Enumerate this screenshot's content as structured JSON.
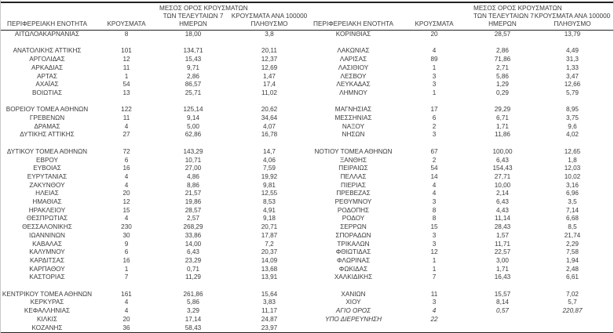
{
  "table": {
    "headers": {
      "region": "ΠΕΡΙΦΕΡΕΙΑΚΗ ΕΝΟΤΗΤΑ",
      "cases": "ΚΡΟΥΣΜΑΤΑ",
      "avg7_l1": "ΜΕΣΟΣ ΟΡΟΣ ΚΡΟΥΣΜΑΤΩΝ",
      "avg7_l2": "ΤΩΝ ΤΕΛΕΥΤΑΙΩΝ 7",
      "avg7_l3": "ΗΜΕΡΩΝ",
      "per100k_l1": "ΚΡΟΥΣΜΑΤΑ ΑΝΑ 100000",
      "per100k_l2": "ΠΛΗΘΥΣΜΟ"
    },
    "text_color": "#3b3b3b",
    "rule_color": "#222222",
    "left_rows": [
      {
        "region": "ΑΙΤΩΛΟΑΚΑΡΝΑΝΙΑΣ",
        "cases": "8",
        "avg7": "18,00",
        "per100k": "3,8"
      },
      {
        "blank": true
      },
      {
        "region": "ΑΝΑΤΟΛΙΚΗΣ ΑΤΤΙΚΗΣ",
        "cases": "101",
        "avg7": "134,71",
        "per100k": "20,11"
      },
      {
        "region": "ΑΡΓΟΛΙΔΑΣ",
        "cases": "12",
        "avg7": "15,43",
        "per100k": "12,37"
      },
      {
        "region": "ΑΡΚΑΔΙΑΣ",
        "cases": "11",
        "avg7": "9,71",
        "per100k": "12,69"
      },
      {
        "region": "ΑΡΤΑΣ",
        "cases": "1",
        "avg7": "2,86",
        "per100k": "1,47"
      },
      {
        "region": "ΑΧΑΪΑΣ",
        "cases": "54",
        "avg7": "86,57",
        "per100k": "17,4"
      },
      {
        "region": "ΒΟΙΩΤΙΑΣ",
        "cases": "13",
        "avg7": "25,71",
        "per100k": "11,02"
      },
      {
        "blank": true
      },
      {
        "region": "ΒΟΡΕΙΟΥ ΤΟΜΕΑ ΑΘΗΝΩΝ",
        "cases": "122",
        "avg7": "125,14",
        "per100k": "20,62"
      },
      {
        "region": "ΓΡΕΒΕΝΩΝ",
        "cases": "11",
        "avg7": "9,14",
        "per100k": "34,64"
      },
      {
        "region": "ΔΡΑΜΑΣ",
        "cases": "4",
        "avg7": "5,00",
        "per100k": "4,07"
      },
      {
        "region": "ΔΥΤΙΚΗΣ ΑΤΤΙΚΗΣ",
        "cases": "27",
        "avg7": "62,86",
        "per100k": "16,78"
      },
      {
        "blank": true
      },
      {
        "region": "ΔΥΤΙΚΟΥ ΤΟΜΕΑ ΑΘΗΝΩΝ",
        "cases": "72",
        "avg7": "143,29",
        "per100k": "14,7"
      },
      {
        "region": "ΕΒΡΟΥ",
        "cases": "6",
        "avg7": "10,71",
        "per100k": "4,06"
      },
      {
        "region": "ΕΥΒΟΙΑΣ",
        "cases": "16",
        "avg7": "27,00",
        "per100k": "7,59"
      },
      {
        "region": "ΕΥΡΥΤΑΝΙΑΣ",
        "cases": "4",
        "avg7": "4,86",
        "per100k": "19,92"
      },
      {
        "region": "ΖΑΚΥΝΘΟΥ",
        "cases": "4",
        "avg7": "8,86",
        "per100k": "9,81"
      },
      {
        "region": "ΗΛΕΙΑΣ",
        "cases": "20",
        "avg7": "21,57",
        "per100k": "12,55"
      },
      {
        "region": "ΗΜΑΘΙΑΣ",
        "cases": "12",
        "avg7": "19,86",
        "per100k": "8,53"
      },
      {
        "region": "ΗΡΑΚΛΕΙΟΥ",
        "cases": "15",
        "avg7": "28,57",
        "per100k": "4,91"
      },
      {
        "region": "ΘΕΣΠΡΩΤΙΑΣ",
        "cases": "4",
        "avg7": "2,57",
        "per100k": "9,18"
      },
      {
        "region": "ΘΕΣΣΑΛΟΝΙΚΗΣ",
        "cases": "230",
        "avg7": "268,29",
        "per100k": "20,71"
      },
      {
        "region": "ΙΩΑΝΝΙΝΩΝ",
        "cases": "30",
        "avg7": "33,86",
        "per100k": "17,87"
      },
      {
        "region": "ΚΑΒΑΛΑΣ",
        "cases": "9",
        "avg7": "14,00",
        "per100k": "7,2"
      },
      {
        "region": "ΚΑΛΥΜΝΟΥ",
        "cases": "6",
        "avg7": "6,43",
        "per100k": "20,37"
      },
      {
        "region": "ΚΑΡΔΙΤΣΑΣ",
        "cases": "16",
        "avg7": "23,29",
        "per100k": "14,09"
      },
      {
        "region": "ΚΑΡΠΑΘΟΥ",
        "cases": "1",
        "avg7": "0,71",
        "per100k": "13,68"
      },
      {
        "region": "ΚΑΣΤΟΡΙΑΣ",
        "cases": "7",
        "avg7": "11,29",
        "per100k": "13,91"
      },
      {
        "blank": true
      },
      {
        "region": "ΚΕΝΤΡΙΚΟΥ ΤΟΜΕΑ ΑΘΗΝΩΝ",
        "cases": "161",
        "avg7": "261,86",
        "per100k": "15,64"
      },
      {
        "region": "ΚΕΡΚΥΡΑΣ",
        "cases": "4",
        "avg7": "5,86",
        "per100k": "3,83"
      },
      {
        "region": "ΚΕΦΑΛΛΗΝΙΑΣ",
        "cases": "4",
        "avg7": "3,29",
        "per100k": "11,17"
      },
      {
        "region": "ΚΙΛΚΙΣ",
        "cases": "20",
        "avg7": "17,14",
        "per100k": "24,87"
      },
      {
        "region": "ΚΟΖΑΝΗΣ",
        "cases": "36",
        "avg7": "58,43",
        "per100k": "23,97"
      }
    ],
    "right_rows": [
      {
        "region": "ΚΟΡΙΝΘΙΑΣ",
        "cases": "20",
        "avg7": "28,57",
        "per100k": "13,79"
      },
      {
        "blank": true
      },
      {
        "region": "ΛΑΚΩΝΙΑΣ",
        "cases": "4",
        "avg7": "2,86",
        "per100k": "4,49"
      },
      {
        "region": "ΛΑΡΙΣΑΣ",
        "cases": "89",
        "avg7": "71,86",
        "per100k": "31,3"
      },
      {
        "region": "ΛΑΣΙΘΙΟΥ",
        "cases": "1",
        "avg7": "2,71",
        "per100k": "1,33"
      },
      {
        "region": "ΛΕΣΒΟΥ",
        "cases": "3",
        "avg7": "5,86",
        "per100k": "3,47"
      },
      {
        "region": "ΛΕΥΚΑΔΑΣ",
        "cases": "3",
        "avg7": "1,29",
        "per100k": "12,66"
      },
      {
        "region": "ΛΗΜΝΟΥ",
        "cases": "1",
        "avg7": "0,29",
        "per100k": "5,79"
      },
      {
        "blank": true
      },
      {
        "region": "ΜΑΓΝΗΣΙΑΣ",
        "cases": "17",
        "avg7": "29,29",
        "per100k": "8,95"
      },
      {
        "region": "ΜΕΣΣΗΝΙΑΣ",
        "cases": "6",
        "avg7": "6,71",
        "per100k": "3,75"
      },
      {
        "region": "ΝΑΞΟΥ",
        "cases": "2",
        "avg7": "1,71",
        "per100k": "9,6"
      },
      {
        "region": "ΝΗΣΩΝ",
        "cases": "3",
        "avg7": "11,86",
        "per100k": "4,02"
      },
      {
        "blank": true
      },
      {
        "region": "ΝΟΤΙΟΥ ΤΟΜΕΑ ΑΘΗΝΩΝ",
        "cases": "67",
        "avg7": "100,00",
        "per100k": "12,65"
      },
      {
        "region": "ΞΑΝΘΗΣ",
        "cases": "2",
        "avg7": "6,43",
        "per100k": "1,8"
      },
      {
        "region": "ΠΕΙΡΑΙΩΣ",
        "cases": "54",
        "avg7": "154,43",
        "per100k": "12,03"
      },
      {
        "region": "ΠΕΛΛΑΣ",
        "cases": "14",
        "avg7": "27,71",
        "per100k": "10,02"
      },
      {
        "region": "ΠΙΕΡΙΑΣ",
        "cases": "4",
        "avg7": "10,00",
        "per100k": "3,16"
      },
      {
        "region": "ΠΡΕΒΕΖΑΣ",
        "cases": "4",
        "avg7": "2,14",
        "per100k": "6,96"
      },
      {
        "region": "ΡΕΘΥΜΝΟΥ",
        "cases": "3",
        "avg7": "6,43",
        "per100k": "3,5"
      },
      {
        "region": "ΡΟΔΟΠΗΣ",
        "cases": "8",
        "avg7": "4,43",
        "per100k": "7,14"
      },
      {
        "region": "ΡΟΔΟΥ",
        "cases": "8",
        "avg7": "11,14",
        "per100k": "6,68"
      },
      {
        "region": "ΣΕΡΡΩΝ",
        "cases": "15",
        "avg7": "28,43",
        "per100k": "8,5"
      },
      {
        "region": "ΣΠΟΡΑΔΩΝ",
        "cases": "3",
        "avg7": "1,57",
        "per100k": "21,74"
      },
      {
        "region": "ΤΡΙΚΑΛΩΝ",
        "cases": "3",
        "avg7": "11,71",
        "per100k": "2,29"
      },
      {
        "region": "ΦΘΙΩΤΙΔΑΣ",
        "cases": "12",
        "avg7": "22,57",
        "per100k": "7,58"
      },
      {
        "region": "ΦΛΩΡΙΝΑΣ",
        "cases": "1",
        "avg7": "3,00",
        "per100k": "1,94"
      },
      {
        "region": "ΦΩΚΙΔΑΣ",
        "cases": "1",
        "avg7": "1,71",
        "per100k": "2,48"
      },
      {
        "region": "ΧΑΛΚΙΔΙΚΗΣ",
        "cases": "7",
        "avg7": "16,43",
        "per100k": "6,61"
      },
      {
        "blank": true
      },
      {
        "region": "ΧΑΝΙΩΝ",
        "cases": "11",
        "avg7": "15,57",
        "per100k": "7,02"
      },
      {
        "region": "ΧΙΟΥ",
        "cases": "3",
        "avg7": "8,14",
        "per100k": "5,7"
      },
      {
        "region": "ΑΓΙΟ ΟΡΟΣ",
        "cases": "4",
        "avg7": "0,57",
        "per100k": "220,87",
        "italic": true
      },
      {
        "region": "ΥΠΟ ΔΙΕΡΕΥΝΗΣΗ",
        "cases": "22",
        "avg7": "",
        "per100k": "",
        "italic": true
      },
      {
        "blank": true
      }
    ]
  }
}
